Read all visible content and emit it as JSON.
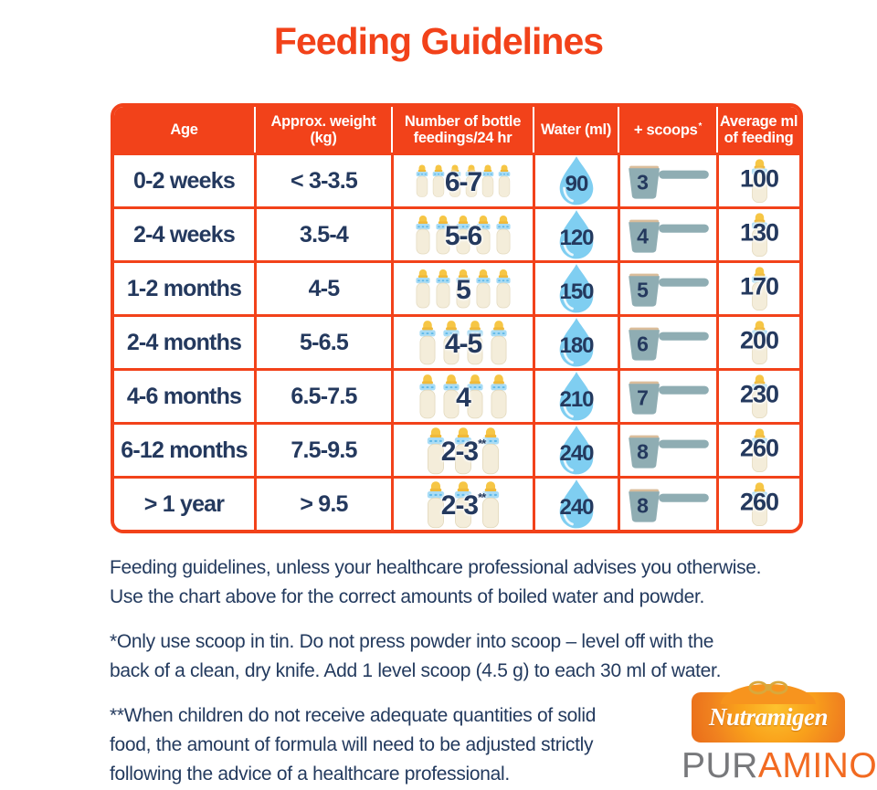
{
  "title": "Feeding Guidelines",
  "colors": {
    "accent_red": "#f2421a",
    "text_navy": "#24395e",
    "water_blue": "#7fcef1",
    "scoop_teal": "#8fadb3",
    "bottle_cream": "#f4edda",
    "bottle_band_blue": "#a9dcf5",
    "nipple_yellow": "#f6c645",
    "logo_orange": "#f7941e",
    "puramino_gray": "#77787b",
    "puramino_orange": "#f26a21"
  },
  "table": {
    "headers": [
      {
        "l1": "Age",
        "l2": "",
        "sup": ""
      },
      {
        "l1": "Approx. weight",
        "l2": "(kg)",
        "sup": ""
      },
      {
        "l1": "Number of bottle",
        "l2": "feedings/24 hr",
        "sup": ""
      },
      {
        "l1": "Water (ml)",
        "l2": "",
        "sup": ""
      },
      {
        "l1": "+ scoops",
        "l2": "",
        "sup": "*"
      },
      {
        "l1": "Average ml",
        "l2": "of feeding",
        "sup": ""
      }
    ],
    "rows": [
      {
        "age": "0-2 weeks",
        "weight": "< 3-3.5",
        "feedings": "6-7",
        "feedings_note": "",
        "bottles": 6,
        "water": "90",
        "scoops": "3",
        "avg": "100"
      },
      {
        "age": "2-4 weeks",
        "weight": "3.5-4",
        "feedings": "5-6",
        "feedings_note": "",
        "bottles": 5,
        "water": "120",
        "scoops": "4",
        "avg": "130"
      },
      {
        "age": "1-2 months",
        "weight": "4-5",
        "feedings": "5",
        "feedings_note": "",
        "bottles": 5,
        "water": "150",
        "scoops": "5",
        "avg": "170"
      },
      {
        "age": "2-4 months",
        "weight": "5-6.5",
        "feedings": "4-5",
        "feedings_note": "",
        "bottles": 4,
        "water": "180",
        "scoops": "6",
        "avg": "200"
      },
      {
        "age": "4-6 months",
        "weight": "6.5-7.5",
        "feedings": "4",
        "feedings_note": "",
        "bottles": 4,
        "water": "210",
        "scoops": "7",
        "avg": "230"
      },
      {
        "age": "6-12 months",
        "weight": "7.5-9.5",
        "feedings": "2-3",
        "feedings_note": "**",
        "bottles": 3,
        "water": "240",
        "scoops": "8",
        "avg": "260"
      },
      {
        "age": "> 1 year",
        "weight": "> 9.5",
        "feedings": "2-3",
        "feedings_note": "**",
        "bottles": 3,
        "water": "240",
        "scoops": "8",
        "avg": "260"
      }
    ]
  },
  "notes": [
    [
      "Feeding guidelines, unless your healthcare professional advises you otherwise.",
      "Use the chart above for the correct amounts of boiled water and powder."
    ],
    [
      "*Only use scoop in tin. Do not press powder into scoop – level off with the",
      "back of a clean, dry knife. Add 1 level scoop (4.5 g) to each 30 ml of water."
    ],
    [
      "**When children do not receive adequate quantities of solid",
      "food, the amount of formula will need to be adjusted strictly",
      "following the advice of a healthcare professional."
    ]
  ],
  "brand": {
    "logo_text": "Nutramigen",
    "product_prefix": "PUR",
    "product_suffix": "AMINO",
    "trademark": "®"
  }
}
